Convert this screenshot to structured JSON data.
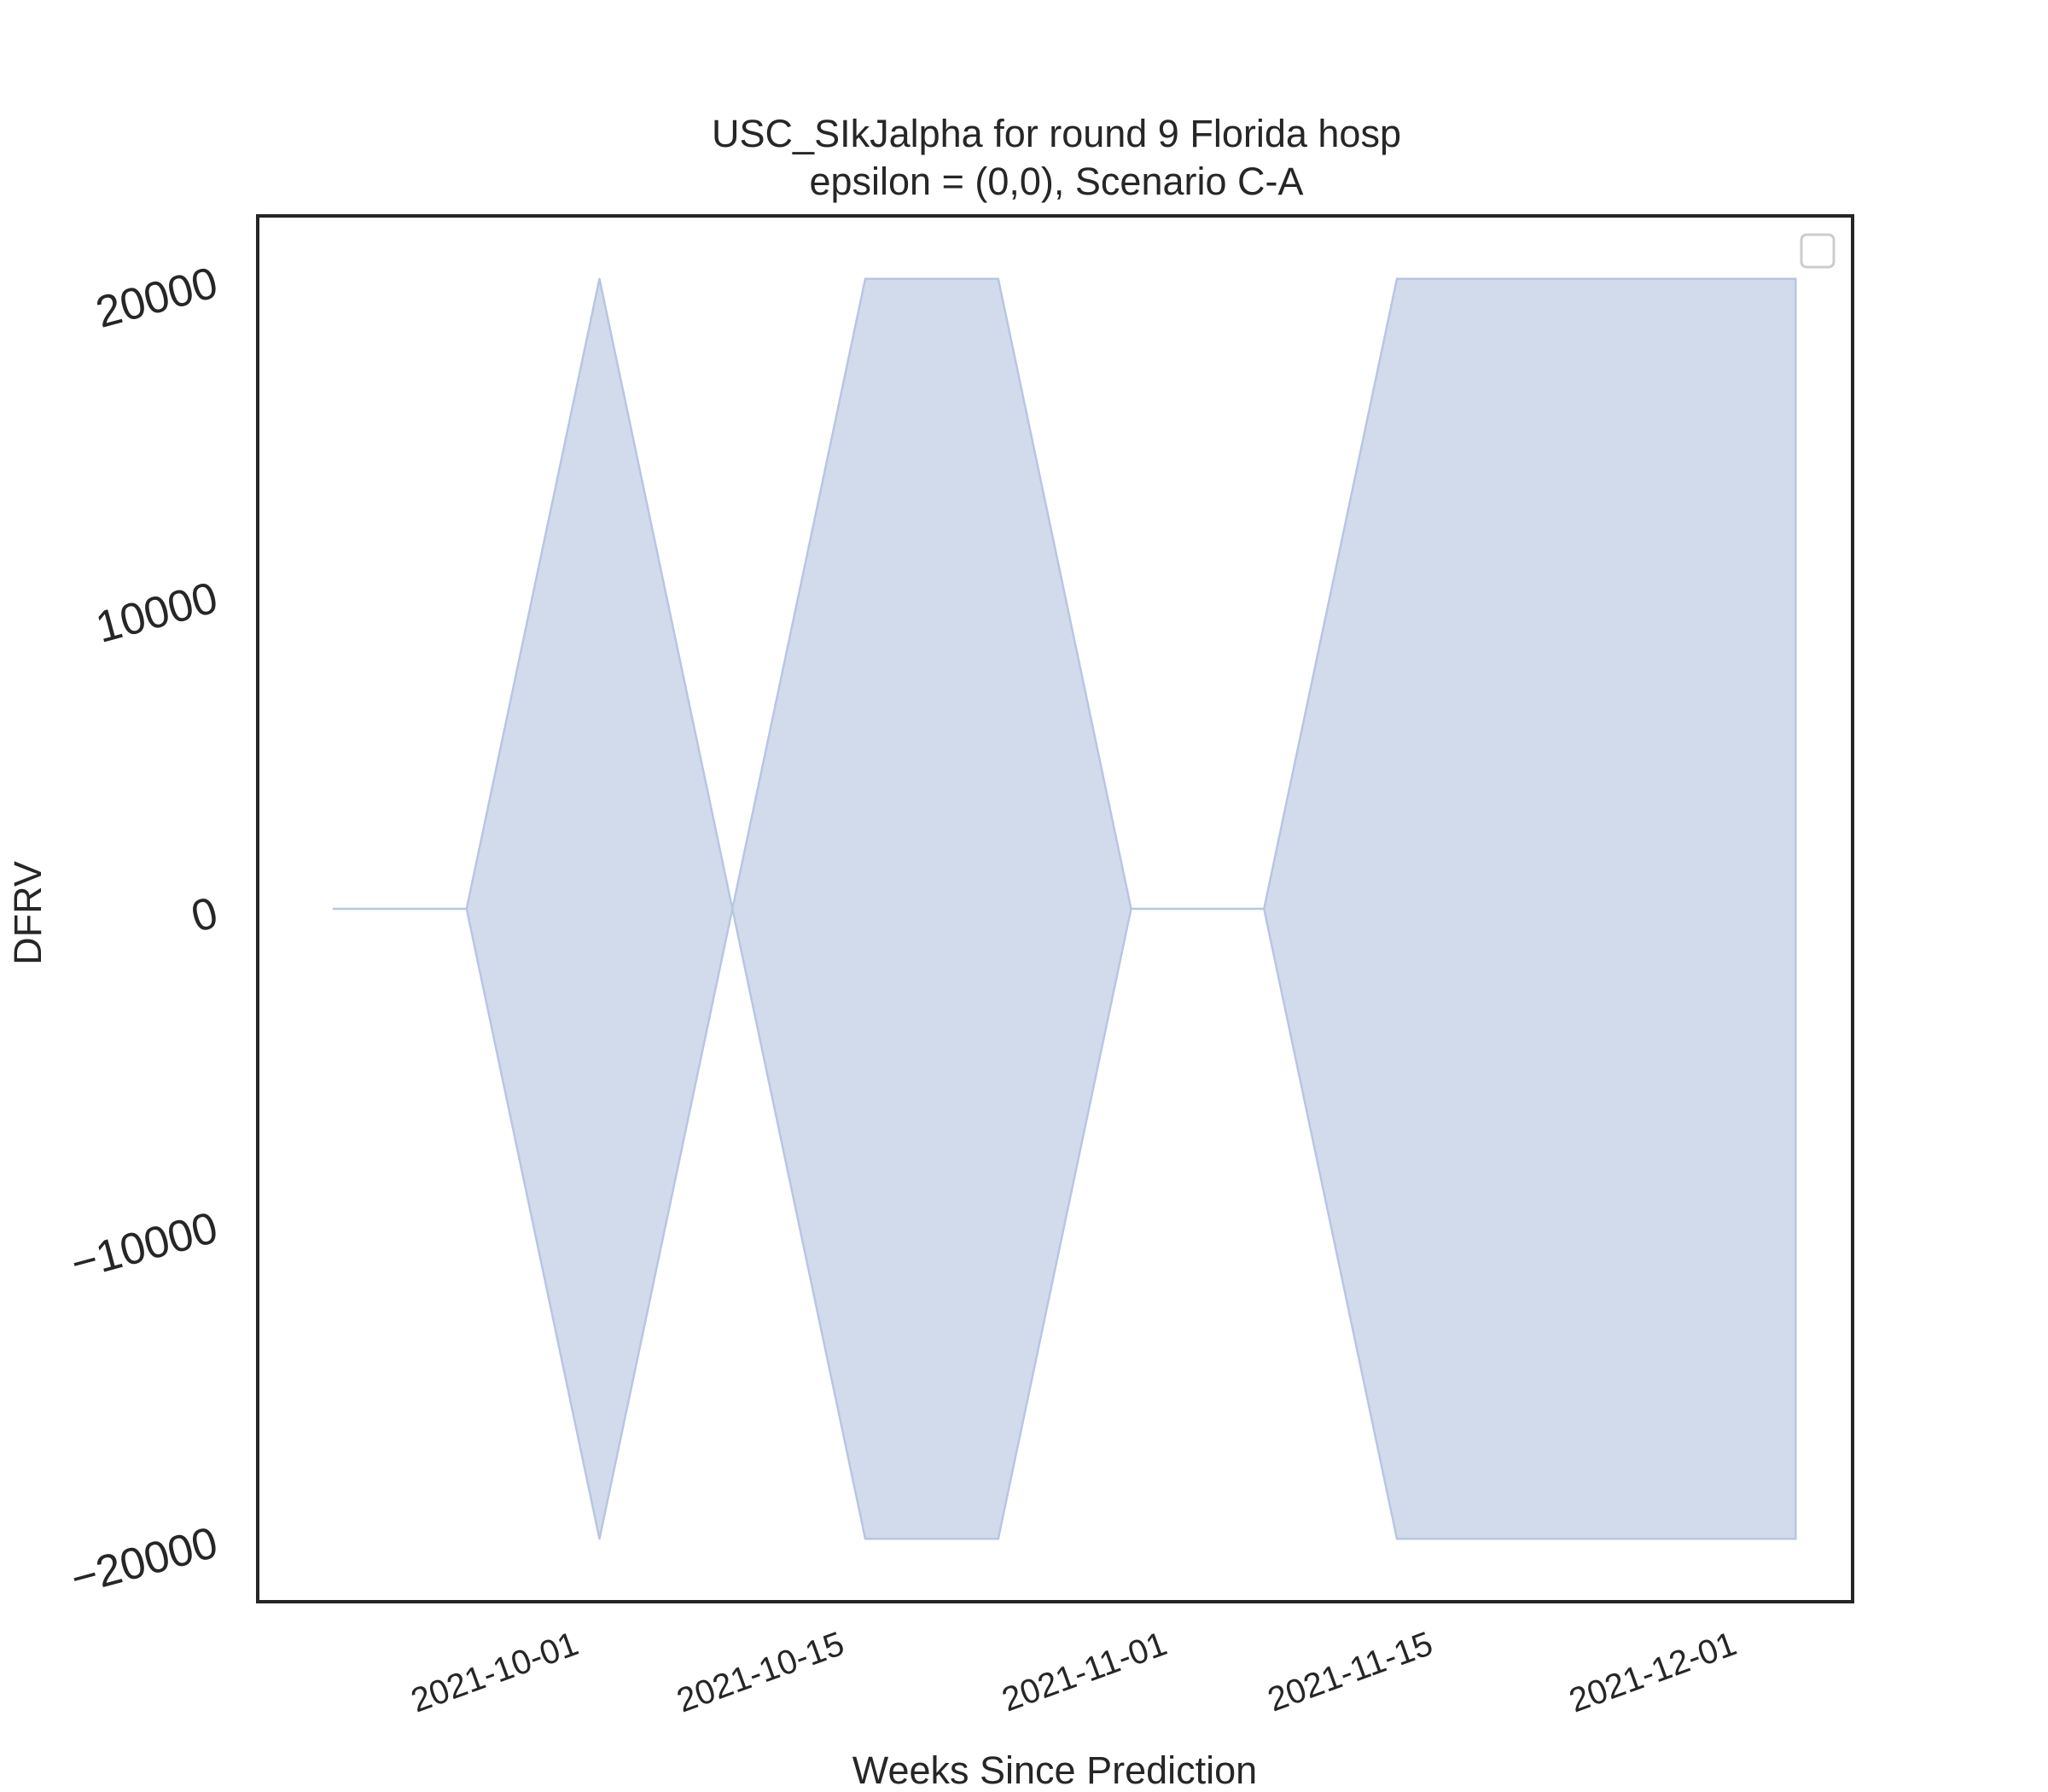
{
  "chart_data": {
    "type": "area",
    "title_line1": "USC_SIkJalpha for round 9 Florida hosp",
    "title_line2": "epsilon = (0,0), Scenario C-A",
    "xlabel": "Weeks Since Prediction",
    "ylabel": "DFRV",
    "x_dates": [
      "2021-09-18",
      "2021-09-25",
      "2021-10-02",
      "2021-10-09",
      "2021-10-16",
      "2021-10-23",
      "2021-10-30",
      "2021-11-06",
      "2021-11-13",
      "2021-11-20",
      "2021-11-27",
      "2021-12-04"
    ],
    "upper": [
      0,
      0,
      20000,
      0,
      20000,
      20000,
      0,
      0,
      20000,
      20000,
      20000,
      20000
    ],
    "lower": [
      0,
      0,
      -20000,
      0,
      -20000,
      -20000,
      0,
      0,
      -20000,
      -20000,
      -20000,
      -20000
    ],
    "x_tick_labels": [
      "2021-10-01",
      "2021-10-15",
      "2021-11-01",
      "2021-11-15",
      "2021-12-01"
    ],
    "y_ticks": [
      -20000,
      -10000,
      0,
      10000,
      20000
    ],
    "y_tick_labels": [
      "−20000",
      "−10000",
      "0",
      "10000",
      "20000"
    ],
    "xlim": [
      "2021-09-14",
      "2021-12-07"
    ],
    "ylim": [
      -22000,
      22000
    ],
    "grid": false,
    "legend": "top-right (empty)",
    "fill_color": "#d1dbec",
    "edge_color": "#b7c6e2",
    "axes_color": "#262626"
  }
}
